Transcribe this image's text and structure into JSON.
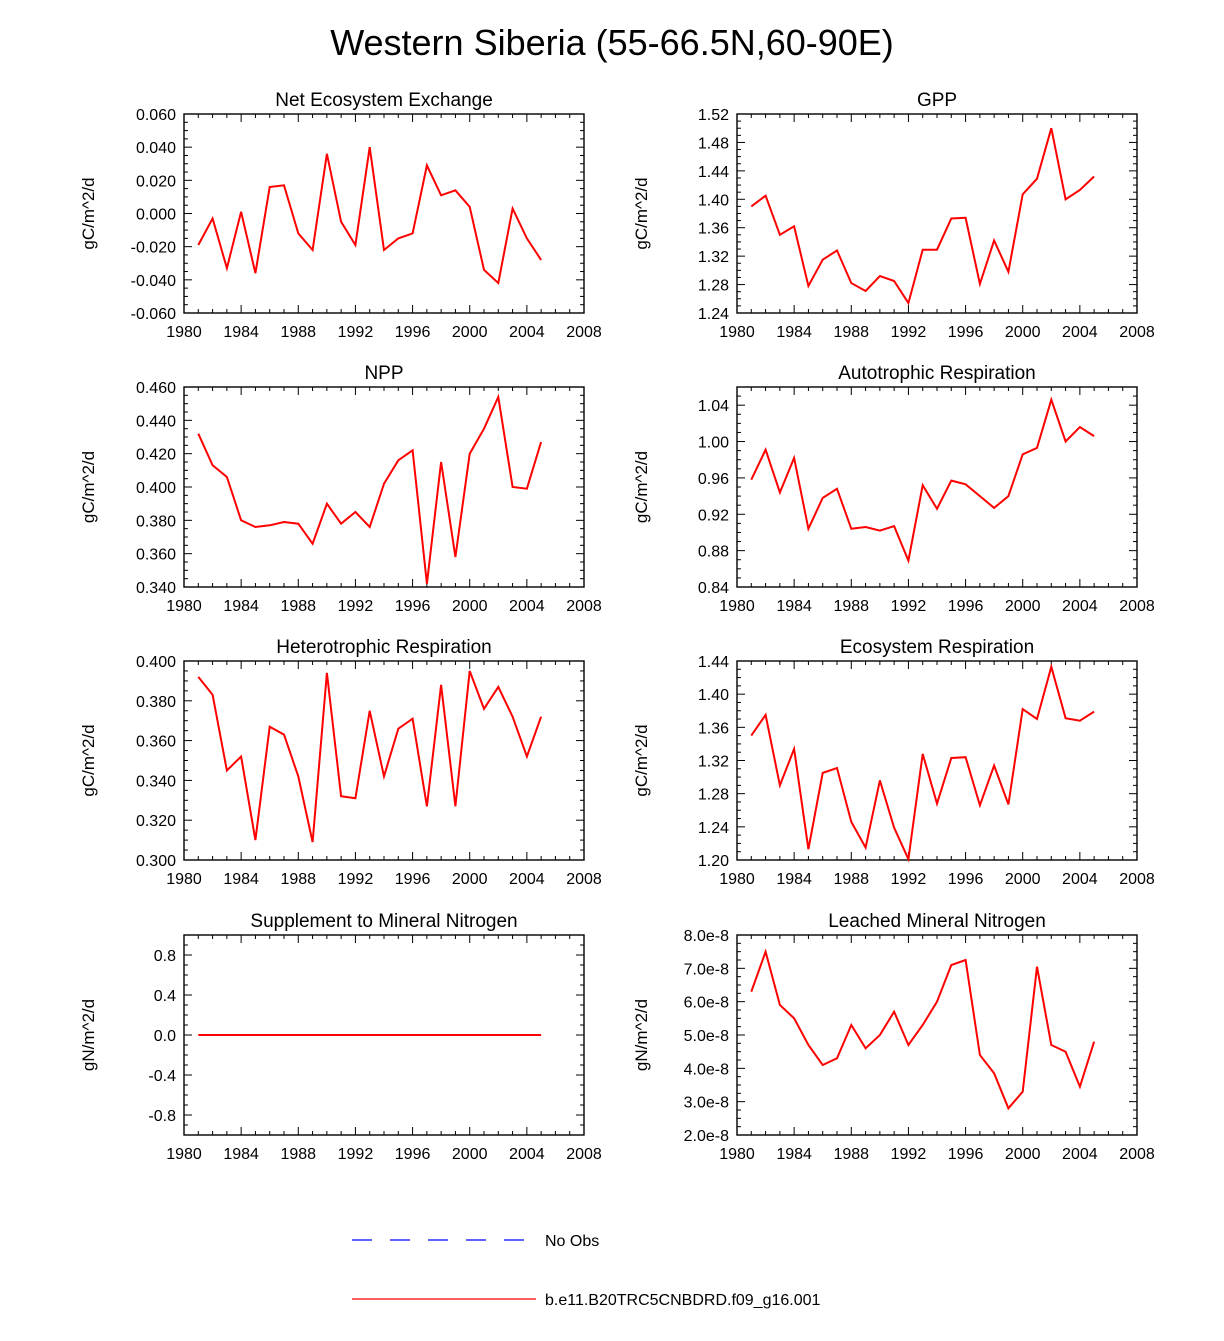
{
  "page": {
    "title": "Western Siberia (55-66.5N,60-90E)"
  },
  "colors": {
    "model": "#ff0000",
    "obs": "#0000ff",
    "axis": "#000000"
  },
  "legend": {
    "obs_label": "No Obs",
    "model_label": "b.e11.B20TRC5CNBDRD.f09_g16.001"
  },
  "chart_data": [
    {
      "type": "line",
      "title": "Net Ecosystem Exchange",
      "ylabel": "gC/m^2/d",
      "xlabel": "",
      "xlim": [
        1980,
        2008
      ],
      "ylim": [
        -0.06,
        0.06
      ],
      "x_ticks": [
        "1980",
        "1984",
        "1988",
        "1992",
        "1996",
        "2000",
        "2004",
        "2008"
      ],
      "y_ticks": [
        "-0.060",
        "-0.040",
        "-0.020",
        "0.000",
        "0.020",
        "0.040",
        "0.060"
      ],
      "x": [
        1981,
        1982,
        1983,
        1984,
        1985,
        1986,
        1987,
        1988,
        1989,
        1990,
        1991,
        1992,
        1993,
        1994,
        1995,
        1996,
        1997,
        1998,
        1999,
        2000,
        2001,
        2002,
        2003,
        2004,
        2005
      ],
      "series": [
        {
          "name": "b.e11.B20TRC5CNBDRD.f09_g16.001",
          "values": [
            -0.019,
            -0.003,
            -0.033,
            0.001,
            -0.036,
            0.016,
            0.017,
            -0.012,
            -0.022,
            0.036,
            -0.005,
            -0.019,
            0.04,
            -0.022,
            -0.015,
            -0.012,
            0.029,
            0.011,
            0.014,
            0.004,
            -0.034,
            -0.042,
            0.003,
            -0.015,
            -0.028
          ]
        }
      ]
    },
    {
      "type": "line",
      "title": "GPP",
      "ylabel": "gC/m^2/d",
      "xlabel": "",
      "xlim": [
        1980,
        2008
      ],
      "ylim": [
        1.24,
        1.52
      ],
      "x_ticks": [
        "1980",
        "1984",
        "1988",
        "1992",
        "1996",
        "2000",
        "2004",
        "2008"
      ],
      "y_ticks": [
        "1.24",
        "1.28",
        "1.32",
        "1.36",
        "1.40",
        "1.44",
        "1.48",
        "1.52"
      ],
      "x": [
        1981,
        1982,
        1983,
        1984,
        1985,
        1986,
        1987,
        1988,
        1989,
        1990,
        1991,
        1992,
        1993,
        1994,
        1995,
        1996,
        1997,
        1998,
        1999,
        2000,
        2001,
        2002,
        2003,
        2004,
        2005
      ],
      "series": [
        {
          "name": "b.e11.B20TRC5CNBDRD.f09_g16.001",
          "values": [
            1.39,
            1.405,
            1.35,
            1.362,
            1.278,
            1.315,
            1.328,
            1.282,
            1.271,
            1.292,
            1.285,
            1.254,
            1.329,
            1.329,
            1.373,
            1.374,
            1.281,
            1.342,
            1.298,
            1.407,
            1.429,
            1.5,
            1.4,
            1.413,
            1.432
          ]
        }
      ]
    },
    {
      "type": "line",
      "title": "NPP",
      "ylabel": "gC/m^2/d",
      "xlabel": "",
      "xlim": [
        1980,
        2008
      ],
      "ylim": [
        0.34,
        0.46
      ],
      "x_ticks": [
        "1980",
        "1984",
        "1988",
        "1992",
        "1996",
        "2000",
        "2004",
        "2008"
      ],
      "y_ticks": [
        "0.340",
        "0.360",
        "0.380",
        "0.400",
        "0.420",
        "0.440",
        "0.460"
      ],
      "x": [
        1981,
        1982,
        1983,
        1984,
        1985,
        1986,
        1987,
        1988,
        1989,
        1990,
        1991,
        1992,
        1993,
        1994,
        1995,
        1996,
        1997,
        1998,
        1999,
        2000,
        2001,
        2002,
        2003,
        2004,
        2005
      ],
      "series": [
        {
          "name": "b.e11.B20TRC5CNBDRD.f09_g16.001",
          "values": [
            0.432,
            0.413,
            0.406,
            0.38,
            0.376,
            0.377,
            0.379,
            0.378,
            0.366,
            0.39,
            0.378,
            0.385,
            0.376,
            0.402,
            0.416,
            0.422,
            0.342,
            0.415,
            0.358,
            0.42,
            0.435,
            0.454,
            0.4,
            0.399,
            0.427
          ]
        }
      ]
    },
    {
      "type": "line",
      "title": "Autotrophic Respiration",
      "ylabel": "gC/m^2/d",
      "xlabel": "",
      "xlim": [
        1980,
        2008
      ],
      "ylim": [
        0.84,
        1.06
      ],
      "x_ticks": [
        "1980",
        "1984",
        "1988",
        "1992",
        "1996",
        "2000",
        "2004",
        "2008"
      ],
      "y_ticks": [
        "0.84",
        "0.88",
        "0.92",
        "0.96",
        "1.00",
        "1.04"
      ],
      "x": [
        1981,
        1982,
        1983,
        1984,
        1985,
        1986,
        1987,
        1988,
        1989,
        1990,
        1991,
        1992,
        1993,
        1994,
        1995,
        1996,
        1997,
        1998,
        1999,
        2000,
        2001,
        2002,
        2003,
        2004,
        2005
      ],
      "series": [
        {
          "name": "b.e11.B20TRC5CNBDRD.f09_g16.001",
          "values": [
            0.958,
            0.991,
            0.944,
            0.982,
            0.904,
            0.938,
            0.948,
            0.904,
            0.906,
            0.902,
            0.907,
            0.869,
            0.952,
            0.926,
            0.957,
            0.953,
            0.94,
            0.927,
            0.94,
            0.986,
            0.993,
            1.046,
            1.0,
            1.016,
            1.006
          ]
        }
      ]
    },
    {
      "type": "line",
      "title": "Heterotrophic Respiration",
      "ylabel": "gC/m^2/d",
      "xlabel": "",
      "xlim": [
        1980,
        2008
      ],
      "ylim": [
        0.3,
        0.4
      ],
      "x_ticks": [
        "1980",
        "1984",
        "1988",
        "1992",
        "1996",
        "2000",
        "2004",
        "2008"
      ],
      "y_ticks": [
        "0.300",
        "0.320",
        "0.340",
        "0.360",
        "0.380",
        "0.400"
      ],
      "x": [
        1981,
        1982,
        1983,
        1984,
        1985,
        1986,
        1987,
        1988,
        1989,
        1990,
        1991,
        1992,
        1993,
        1994,
        1995,
        1996,
        1997,
        1998,
        1999,
        2000,
        2001,
        2002,
        2003,
        2004,
        2005
      ],
      "series": [
        {
          "name": "b.e11.B20TRC5CNBDRD.f09_g16.001",
          "values": [
            0.392,
            0.383,
            0.345,
            0.352,
            0.31,
            0.367,
            0.363,
            0.342,
            0.309,
            0.394,
            0.332,
            0.331,
            0.375,
            0.342,
            0.366,
            0.371,
            0.327,
            0.388,
            0.327,
            0.395,
            0.376,
            0.387,
            0.372,
            0.352,
            0.372
          ]
        }
      ]
    },
    {
      "type": "line",
      "title": "Ecosystem Respiration",
      "ylabel": "gC/m^2/d",
      "xlabel": "",
      "xlim": [
        1980,
        2008
      ],
      "ylim": [
        1.2,
        1.44
      ],
      "x_ticks": [
        "1980",
        "1984",
        "1988",
        "1992",
        "1996",
        "2000",
        "2004",
        "2008"
      ],
      "y_ticks": [
        "1.20",
        "1.24",
        "1.28",
        "1.32",
        "1.36",
        "1.40",
        "1.44"
      ],
      "x": [
        1981,
        1982,
        1983,
        1984,
        1985,
        1986,
        1987,
        1988,
        1989,
        1990,
        1991,
        1992,
        1993,
        1994,
        1995,
        1996,
        1997,
        1998,
        1999,
        2000,
        2001,
        2002,
        2003,
        2004,
        2005
      ],
      "series": [
        {
          "name": "b.e11.B20TRC5CNBDRD.f09_g16.001",
          "values": [
            1.35,
            1.375,
            1.29,
            1.334,
            1.213,
            1.305,
            1.311,
            1.246,
            1.215,
            1.296,
            1.239,
            1.201,
            1.328,
            1.268,
            1.323,
            1.324,
            1.266,
            1.314,
            1.267,
            1.382,
            1.37,
            1.433,
            1.371,
            1.368,
            1.379
          ]
        }
      ]
    },
    {
      "type": "line",
      "title": "Supplement to Mineral Nitrogen",
      "ylabel": "gN/m^2/d",
      "xlabel": "",
      "xlim": [
        1980,
        2008
      ],
      "ylim": [
        -1.0,
        1.0
      ],
      "x_ticks": [
        "1980",
        "1984",
        "1988",
        "1992",
        "1996",
        "2000",
        "2004",
        "2008"
      ],
      "y_ticks": [
        "-0.8",
        "-0.4",
        "0.0",
        "0.4",
        "0.8"
      ],
      "x": [
        1981,
        1982,
        1983,
        1984,
        1985,
        1986,
        1987,
        1988,
        1989,
        1990,
        1991,
        1992,
        1993,
        1994,
        1995,
        1996,
        1997,
        1998,
        1999,
        2000,
        2001,
        2002,
        2003,
        2004,
        2005
      ],
      "series": [
        {
          "name": "b.e11.B20TRC5CNBDRD.f09_g16.001",
          "values": [
            0,
            0,
            0,
            0,
            0,
            0,
            0,
            0,
            0,
            0,
            0,
            0,
            0,
            0,
            0,
            0,
            0,
            0,
            0,
            0,
            0,
            0,
            0,
            0,
            0
          ]
        }
      ]
    },
    {
      "type": "line",
      "title": "Leached Mineral Nitrogen",
      "ylabel": "gN/m^2/d",
      "xlabel": "",
      "xlim": [
        1980,
        2008
      ],
      "ylim": [
        2e-08,
        8e-08
      ],
      "x_ticks": [
        "1980",
        "1984",
        "1988",
        "1992",
        "1996",
        "2000",
        "2004",
        "2008"
      ],
      "y_ticks": [
        "2.0e-8",
        "3.0e-8",
        "4.0e-8",
        "5.0e-8",
        "6.0e-8",
        "7.0e-8",
        "8.0e-8"
      ],
      "x": [
        1981,
        1982,
        1983,
        1984,
        1985,
        1986,
        1987,
        1988,
        1989,
        1990,
        1991,
        1992,
        1993,
        1994,
        1995,
        1996,
        1997,
        1998,
        1999,
        2000,
        2001,
        2002,
        2003,
        2004,
        2005
      ],
      "series": [
        {
          "name": "b.e11.B20TRC5CNBDRD.f09_g16.001",
          "values": [
            6.3e-08,
            7.5e-08,
            5.9e-08,
            5.5e-08,
            4.7e-08,
            4.1e-08,
            4.3e-08,
            5.3e-08,
            4.6e-08,
            5e-08,
            5.7e-08,
            4.7e-08,
            5.3e-08,
            6e-08,
            7.1e-08,
            7.25e-08,
            4.4e-08,
            3.85e-08,
            2.8e-08,
            3.3e-08,
            7.05e-08,
            4.7e-08,
            4.5e-08,
            3.45e-08,
            4.8e-08
          ]
        }
      ]
    }
  ]
}
